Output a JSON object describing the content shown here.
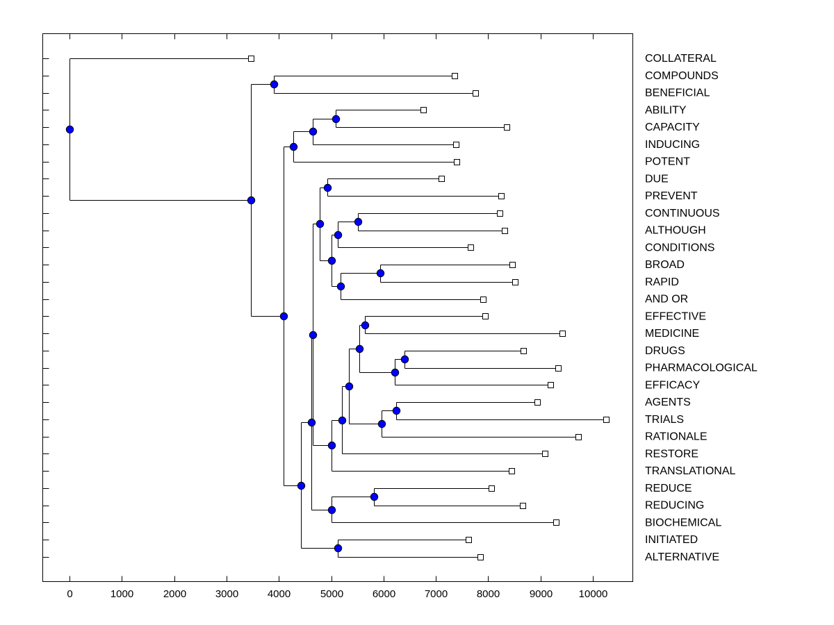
{
  "chart_data": {
    "type": "dendrogram",
    "title": "",
    "xlabel": "",
    "ylabel": "",
    "xlim": [
      -500,
      10750
    ],
    "xticks": [
      0,
      1000,
      2000,
      3000,
      4000,
      5000,
      6000,
      7000,
      8000,
      9000,
      10000
    ],
    "xtick_labels": [
      "0",
      "1000",
      "2000",
      "3000",
      "4000",
      "5000",
      "6000",
      "7000",
      "8000",
      "9000",
      "10000"
    ],
    "grid": false,
    "node_color": "#0000ff",
    "leaf_color": "#ffffff",
    "line_color": "#000000",
    "leaves": [
      {
        "label": "COLLATERAL",
        "value": 3466
      },
      {
        "label": "COMPOUNDS",
        "value": 7357
      },
      {
        "label": "BENEFICIAL",
        "value": 7756
      },
      {
        "label": "ABILITY",
        "value": 6760
      },
      {
        "label": "CAPACITY",
        "value": 8353
      },
      {
        "label": "INDUCING",
        "value": 7384
      },
      {
        "label": "POTENT",
        "value": 7397
      },
      {
        "label": "DUE",
        "value": 7105
      },
      {
        "label": "PREVENT",
        "value": 8247
      },
      {
        "label": "CONTINUOUS",
        "value": 8220
      },
      {
        "label": "ALTHOUGH",
        "value": 8313
      },
      {
        "label": "CONDITIONS",
        "value": 7663
      },
      {
        "label": "BROAD",
        "value": 8459
      },
      {
        "label": "RAPID",
        "value": 8513
      },
      {
        "label": "AND OR",
        "value": 7902
      },
      {
        "label": "EFFECTIVE",
        "value": 7942
      },
      {
        "label": "MEDICINE",
        "value": 9416
      },
      {
        "label": "DRUGS",
        "value": 8672
      },
      {
        "label": "PHARMACOLOGICAL",
        "value": 9336
      },
      {
        "label": "EFFICACY",
        "value": 9190
      },
      {
        "label": "AGENTS",
        "value": 8938
      },
      {
        "label": "TRIALS",
        "value": 10252
      },
      {
        "label": "RATIONALE",
        "value": 9721
      },
      {
        "label": "RESTORE",
        "value": 9084
      },
      {
        "label": "TRANSLATIONAL",
        "value": 8446
      },
      {
        "label": "REDUCE",
        "value": 8061
      },
      {
        "label": "REDUCING",
        "value": 8659
      },
      {
        "label": "BIOCHEMICAL",
        "value": 9296
      },
      {
        "label": "INITIATED",
        "value": 7623
      },
      {
        "label": "ALTERNATIVE",
        "value": 7849
      }
    ],
    "nodes": [
      {
        "id": "n1",
        "value": 0,
        "children": [
          "L0",
          "n2"
        ]
      },
      {
        "id": "n2",
        "value": 3466,
        "children": [
          "n3",
          "n5"
        ]
      },
      {
        "id": "n3",
        "value": 3904,
        "children": [
          "L1",
          "L2"
        ]
      },
      {
        "id": "n5",
        "value": 4090,
        "children": [
          "n6",
          "n10"
        ]
      },
      {
        "id": "n6",
        "value": 4276,
        "children": [
          "n7",
          "L6"
        ]
      },
      {
        "id": "n7",
        "value": 4648,
        "children": [
          "n8",
          "L5"
        ]
      },
      {
        "id": "n8",
        "value": 5086,
        "children": [
          "L3",
          "L4"
        ]
      },
      {
        "id": "n10",
        "value": 4422,
        "children": [
          "n11",
          "n30"
        ]
      },
      {
        "id": "n11",
        "value": 4622,
        "children": [
          "n12",
          "n26"
        ]
      },
      {
        "id": "n12",
        "value": 4648,
        "children": [
          "n13",
          "n20"
        ]
      },
      {
        "id": "n13",
        "value": 4781,
        "children": [
          "n14",
          "n15"
        ]
      },
      {
        "id": "n14",
        "value": 4927,
        "children": [
          "L7",
          "L8"
        ]
      },
      {
        "id": "n15",
        "value": 5007,
        "children": [
          "n16",
          "n18"
        ]
      },
      {
        "id": "n16",
        "value": 5126,
        "children": [
          "n17",
          "L11"
        ]
      },
      {
        "id": "n17",
        "value": 5511,
        "children": [
          "L9",
          "L10"
        ]
      },
      {
        "id": "n18",
        "value": 5179,
        "children": [
          "n19",
          "L14"
        ]
      },
      {
        "id": "n19",
        "value": 5936,
        "children": [
          "L12",
          "L13"
        ]
      },
      {
        "id": "n20",
        "value": 5007,
        "children": [
          "n21",
          "L24"
        ]
      },
      {
        "id": "n21",
        "value": 5206,
        "children": [
          "n22",
          "L23"
        ]
      },
      {
        "id": "n22",
        "value": 5339,
        "children": [
          "n23",
          "n25"
        ]
      },
      {
        "id": "n23",
        "value": 5538,
        "children": [
          "n24",
          "n27"
        ]
      },
      {
        "id": "n24",
        "value": 5644,
        "children": [
          "L15",
          "L16"
        ]
      },
      {
        "id": "n27",
        "value": 6215,
        "children": [
          "n28",
          "L19"
        ]
      },
      {
        "id": "n28",
        "value": 6401,
        "children": [
          "L17",
          "L18"
        ]
      },
      {
        "id": "n25",
        "value": 5963,
        "children": [
          "n29",
          "L22"
        ]
      },
      {
        "id": "n29",
        "value": 6242,
        "children": [
          "L20",
          "L21"
        ]
      },
      {
        "id": "n26",
        "value": 5007,
        "children": [
          "n31",
          "L27"
        ]
      },
      {
        "id": "n31",
        "value": 5817,
        "children": [
          "L25",
          "L26"
        ]
      },
      {
        "id": "n30",
        "value": 5126,
        "children": [
          "L28",
          "L29"
        ]
      }
    ]
  }
}
